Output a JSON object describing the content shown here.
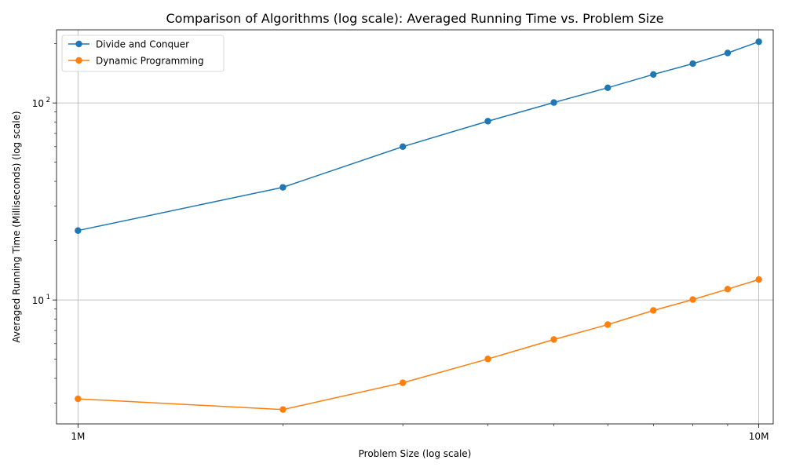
{
  "chart_data": {
    "type": "line",
    "title": "Comparison of Algorithms (log scale): Averaged Running Time vs. Problem Size",
    "xlabel": "Problem Size (log scale)",
    "ylabel": "Averaged Running Time (Milliseconds) (log scale)",
    "xscale": "log",
    "yscale": "log",
    "xlim": [
      930000,
      10500000
    ],
    "ylim": [
      2.35,
      235
    ],
    "xticks": [
      {
        "value": 1000000,
        "label": "1M"
      },
      {
        "value": 10000000,
        "label": "10M"
      }
    ],
    "yticks": [
      {
        "value": 10,
        "label_base": "10",
        "label_exp": "1"
      },
      {
        "value": 100,
        "label_base": "10",
        "label_exp": "2"
      }
    ],
    "grid": true,
    "legend_position": "top-left",
    "x": [
      1000000,
      2000000,
      3000000,
      4000000,
      5000000,
      6000000,
      7000000,
      8000000,
      9000000,
      10000000
    ],
    "series": [
      {
        "name": "Divide and Conquer",
        "color": "#1f77b4",
        "values": [
          22.5,
          37.3,
          60.0,
          80.8,
          100.5,
          119.4,
          139.5,
          158.3,
          179.3,
          204.5
        ]
      },
      {
        "name": "Dynamic Programming",
        "color": "#ff7f0e",
        "values": [
          3.15,
          2.78,
          3.8,
          5.02,
          6.3,
          7.5,
          8.85,
          10.05,
          11.35,
          12.7
        ]
      }
    ]
  }
}
